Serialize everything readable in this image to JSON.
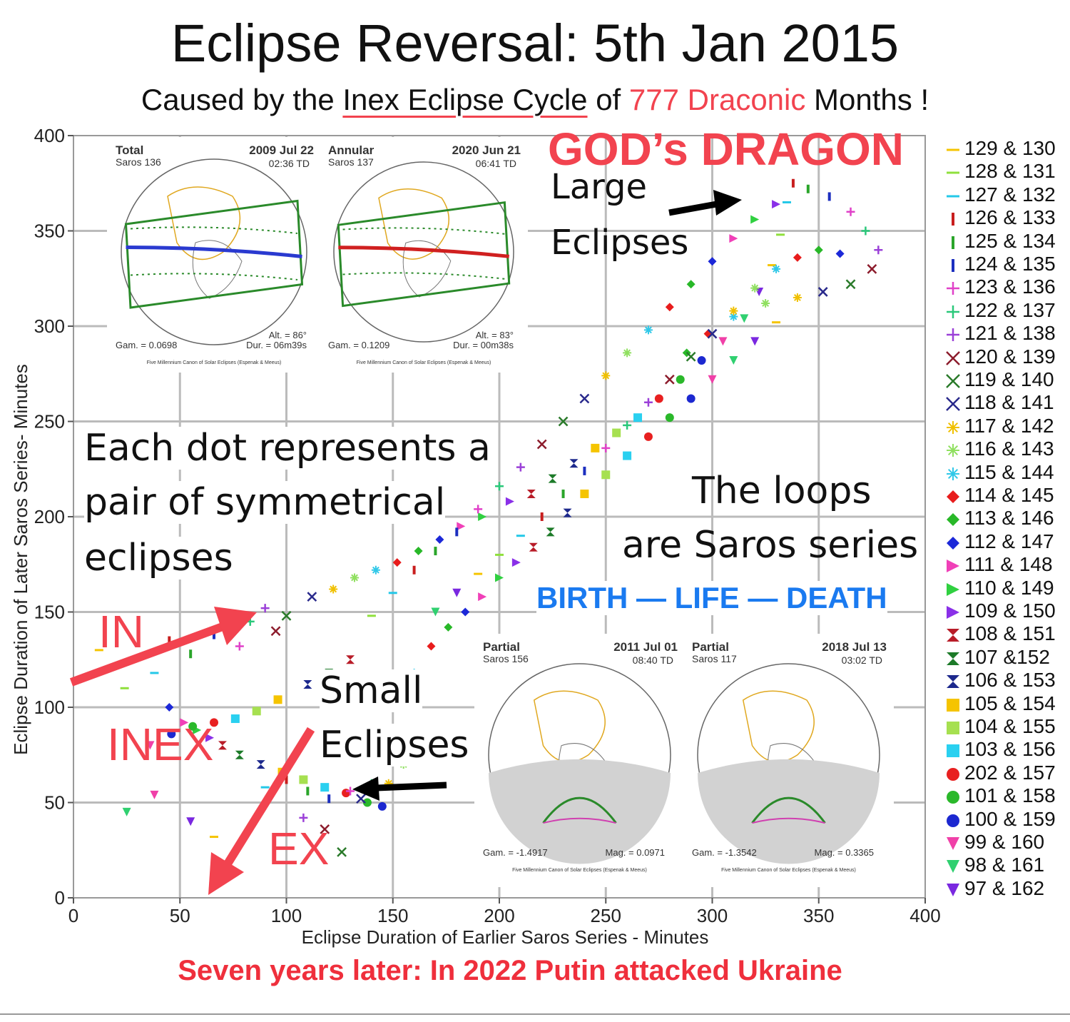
{
  "header": {
    "title": "Eclipse Reversal: 5th Jan 2015",
    "subtitle_a": "Caused by the ",
    "subtitle_b": "Inex Eclipse Cycle",
    "subtitle_c": " of ",
    "subtitle_d": "777 Draconic",
    "subtitle_e": " Months !"
  },
  "footer": "Seven years later: In 2022 Putin attacked Ukraine",
  "annotations": {
    "gods_dragon": "GOD’s DRAGON",
    "large": "Large",
    "large_eclipses": "Eclipses",
    "each_dot_1": "Each dot represents a",
    "each_dot_2": "pair of symmetrical",
    "each_dot_3": "eclipses",
    "loops_1": "The loops",
    "loops_2": "are Saros series",
    "birth": "BIRTH — LIFE — DEATH",
    "in": "IN",
    "inex": "INEX",
    "ex": "EX",
    "small": "Small",
    "small_eclipses": "Eclipses"
  },
  "maps": [
    {
      "type": "Total",
      "saros": "Saros 136",
      "date": "2009 Jul 22",
      "time": "02:36 TD",
      "gam": "Gam. = 0.0698",
      "alt": "Alt. = 86°",
      "dur": "Dur. = 06m39s",
      "credit": "Five Millennium Canon of Solar Eclipses (Espenak & Meeus)"
    },
    {
      "type": "Annular",
      "saros": "Saros 137",
      "date": "2020 Jun 21",
      "time": "06:41 TD",
      "gam": "Gam. = 0.1209",
      "alt": "Alt. = 83°",
      "dur": "Dur. = 00m38s",
      "credit": "Five Millennium Canon of Solar Eclipses (Espenak & Meeus)"
    },
    {
      "type": "Partial",
      "saros": "Saros 156",
      "date": "2011 Jul 01",
      "time": "08:40 TD",
      "gam": "Gam. = -1.4917",
      "mag": "Mag. = 0.0971",
      "credit": "Five Millennium Canon of Solar Eclipses (Espenak & Meeus)"
    },
    {
      "type": "Partial",
      "saros": "Saros 117",
      "date": "2018 Jul 13",
      "time": "03:02 TD",
      "gam": "Gam. = -1.3542",
      "mag": "Mag. = 0.3365",
      "credit": "Five Millennium Canon of Solar Eclipses (Espenak & Meeus)"
    }
  ],
  "chart_data": {
    "type": "scatter",
    "title": "Eclipse Reversal: 5th Jan 2015",
    "xlabel": "Eclipse Duration of Earlier Saros Series - Minutes",
    "ylabel": "Eclipse Duration of Later Saros Series- Minutes",
    "xlim": [
      0,
      400
    ],
    "ylim": [
      0,
      400
    ],
    "xticks": [
      0,
      50,
      100,
      150,
      200,
      250,
      300,
      350,
      400
    ],
    "yticks": [
      0,
      50,
      100,
      150,
      200,
      250,
      300,
      350,
      400
    ],
    "grid": true,
    "legend_position": "right",
    "series": [
      {
        "name": "129 & 130",
        "color": "#f5c400",
        "marker": "hline"
      },
      {
        "name": "128 & 131",
        "color": "#8fe03c",
        "marker": "hline"
      },
      {
        "name": "127 & 132",
        "color": "#23c8e8",
        "marker": "hline"
      },
      {
        "name": "126 & 133",
        "color": "#c81e1e",
        "marker": "vline"
      },
      {
        "name": "125 & 134",
        "color": "#2aa52a",
        "marker": "vline"
      },
      {
        "name": "124 & 135",
        "color": "#1c2fbf",
        "marker": "vline"
      },
      {
        "name": "123 & 136",
        "color": "#e040c8",
        "marker": "plus"
      },
      {
        "name": "122 & 137",
        "color": "#2ac87a",
        "marker": "plus"
      },
      {
        "name": "121 & 138",
        "color": "#9b40d8",
        "marker": "plus"
      },
      {
        "name": "120 & 139",
        "color": "#8c1c2c",
        "marker": "x"
      },
      {
        "name": "119 & 140",
        "color": "#2a7a2a",
        "marker": "x"
      },
      {
        "name": "118 & 141",
        "color": "#2a2a8c",
        "marker": "x"
      },
      {
        "name": "117 & 142",
        "color": "#f0c000",
        "marker": "star"
      },
      {
        "name": "116 & 143",
        "color": "#90e060",
        "marker": "star"
      },
      {
        "name": "115 & 144",
        "color": "#30c8e8",
        "marker": "star"
      },
      {
        "name": "114 & 145",
        "color": "#e81c1c",
        "marker": "diamond"
      },
      {
        "name": "113 & 146",
        "color": "#28b828",
        "marker": "diamond"
      },
      {
        "name": "112 & 147",
        "color": "#1c28d8",
        "marker": "diamond"
      },
      {
        "name": "111 & 148",
        "color": "#f040b8",
        "marker": "tri-right"
      },
      {
        "name": "110 & 149",
        "color": "#30d040",
        "marker": "tri-right"
      },
      {
        "name": "109 & 150",
        "color": "#8a30e8",
        "marker": "tri-right"
      },
      {
        "name": "108 & 151",
        "color": "#b81c28",
        "marker": "hourglass"
      },
      {
        "name": "107 &152",
        "color": "#1c7a28",
        "marker": "hourglass"
      },
      {
        "name": "106 & 153",
        "color": "#1c288c",
        "marker": "hourglass"
      },
      {
        "name": "105 & 154",
        "color": "#f5c400",
        "marker": "square"
      },
      {
        "name": "104 & 155",
        "color": "#a6e050",
        "marker": "square"
      },
      {
        "name": "103 & 156",
        "color": "#2ad0f0",
        "marker": "square"
      },
      {
        "name": "202 & 157",
        "color": "#e82020",
        "marker": "circle"
      },
      {
        "name": "101 & 158",
        "color": "#2ab82a",
        "marker": "circle"
      },
      {
        "name": "100 & 159",
        "color": "#1c28d0",
        "marker": "circle"
      },
      {
        "name": "99 & 160",
        "color": "#f040a8",
        "marker": "tri-down"
      },
      {
        "name": "98 & 161",
        "color": "#30d070",
        "marker": "tri-down"
      },
      {
        "name": "97 & 162",
        "color": "#7a28e0",
        "marker": "tri-down"
      }
    ],
    "points": [
      [
        12,
        130
      ],
      [
        24,
        110
      ],
      [
        38,
        118
      ],
      [
        45,
        135
      ],
      [
        55,
        128
      ],
      [
        66,
        138
      ],
      [
        78,
        132
      ],
      [
        83,
        145
      ],
      [
        90,
        152
      ],
      [
        95,
        140
      ],
      [
        100,
        148
      ],
      [
        112,
        158
      ],
      [
        122,
        162
      ],
      [
        132,
        168
      ],
      [
        142,
        172
      ],
      [
        152,
        176
      ],
      [
        162,
        182
      ],
      [
        172,
        188
      ],
      [
        182,
        195
      ],
      [
        192,
        200
      ],
      [
        205,
        208
      ],
      [
        215,
        212
      ],
      [
        225,
        220
      ],
      [
        235,
        228
      ],
      [
        245,
        236
      ],
      [
        255,
        244
      ],
      [
        265,
        252
      ],
      [
        275,
        262
      ],
      [
        285,
        272
      ],
      [
        295,
        282
      ],
      [
        305,
        292
      ],
      [
        315,
        304
      ],
      [
        322,
        318
      ],
      [
        328,
        332
      ],
      [
        332,
        348
      ],
      [
        335,
        365
      ],
      [
        338,
        375
      ],
      [
        345,
        372
      ],
      [
        355,
        368
      ],
      [
        365,
        360
      ],
      [
        372,
        350
      ],
      [
        378,
        340
      ],
      [
        375,
        330
      ],
      [
        365,
        322
      ],
      [
        352,
        318
      ],
      [
        340,
        315
      ],
      [
        325,
        312
      ],
      [
        310,
        305
      ],
      [
        298,
        296
      ],
      [
        288,
        286
      ],
      [
        45,
        100
      ],
      [
        52,
        92
      ],
      [
        58,
        88
      ],
      [
        64,
        84
      ],
      [
        70,
        80
      ],
      [
        78,
        75
      ],
      [
        88,
        70
      ],
      [
        98,
        66
      ],
      [
        108,
        62
      ],
      [
        118,
        58
      ],
      [
        128,
        55
      ],
      [
        138,
        50
      ],
      [
        145,
        48
      ],
      [
        38,
        54
      ],
      [
        25,
        45
      ],
      [
        55,
        40
      ],
      [
        66,
        32
      ],
      [
        78,
        28
      ],
      [
        90,
        58
      ],
      [
        100,
        62
      ],
      [
        110,
        56
      ],
      [
        120,
        52
      ],
      [
        130,
        56
      ],
      [
        140,
        60
      ],
      [
        108,
        42
      ],
      [
        118,
        36
      ],
      [
        126,
        24
      ],
      [
        135,
        52
      ],
      [
        148,
        60
      ],
      [
        155,
        70
      ],
      [
        160,
        118
      ],
      [
        168,
        132
      ],
      [
        176,
        142
      ],
      [
        184,
        150
      ],
      [
        192,
        158
      ],
      [
        200,
        168
      ],
      [
        208,
        176
      ],
      [
        216,
        184
      ],
      [
        224,
        192
      ],
      [
        232,
        202
      ],
      [
        240,
        212
      ],
      [
        250,
        222
      ],
      [
        260,
        232
      ],
      [
        270,
        242
      ],
      [
        280,
        252
      ],
      [
        290,
        262
      ],
      [
        300,
        272
      ],
      [
        310,
        282
      ],
      [
        320,
        292
      ],
      [
        330,
        302
      ],
      [
        140,
        148
      ],
      [
        150,
        160
      ],
      [
        160,
        172
      ],
      [
        170,
        182
      ],
      [
        180,
        192
      ],
      [
        190,
        204
      ],
      [
        200,
        216
      ],
      [
        210,
        226
      ],
      [
        220,
        238
      ],
      [
        230,
        250
      ],
      [
        240,
        262
      ],
      [
        250,
        274
      ],
      [
        260,
        286
      ],
      [
        270,
        298
      ],
      [
        280,
        310
      ],
      [
        290,
        322
      ],
      [
        300,
        334
      ],
      [
        310,
        346
      ],
      [
        320,
        356
      ],
      [
        330,
        364
      ],
      [
        130,
        125
      ],
      [
        120,
        118
      ],
      [
        110,
        112
      ],
      [
        96,
        104
      ],
      [
        86,
        98
      ],
      [
        76,
        94
      ],
      [
        66,
        92
      ],
      [
        56,
        90
      ],
      [
        46,
        86
      ],
      [
        36,
        80
      ],
      [
        170,
        150
      ],
      [
        180,
        160
      ],
      [
        190,
        170
      ],
      [
        200,
        180
      ],
      [
        210,
        190
      ],
      [
        220,
        200
      ],
      [
        230,
        212
      ],
      [
        240,
        224
      ],
      [
        250,
        236
      ],
      [
        260,
        248
      ],
      [
        270,
        260
      ],
      [
        280,
        272
      ],
      [
        290,
        284
      ],
      [
        300,
        296
      ],
      [
        310,
        308
      ],
      [
        320,
        320
      ],
      [
        330,
        330
      ],
      [
        340,
        336
      ],
      [
        350,
        340
      ],
      [
        360,
        338
      ]
    ]
  }
}
